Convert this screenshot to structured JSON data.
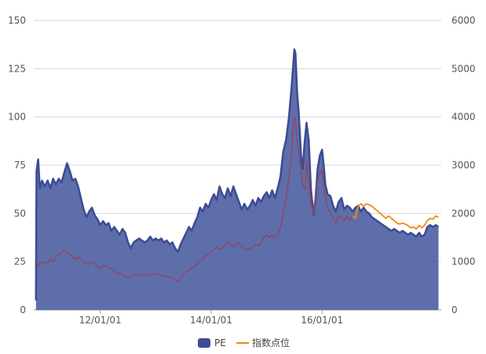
{
  "chart_data": {
    "type": "area",
    "x_ticks": [
      {
        "label": "12/01/01",
        "year": 2012.0
      },
      {
        "label": "14/01/01",
        "year": 2014.0
      },
      {
        "label": "16/01/01",
        "year": 2016.0
      }
    ],
    "x_range": [
      2010.8,
      2018.15
    ],
    "y_left": {
      "min": 0,
      "max": 150,
      "ticks": [
        0,
        25,
        50,
        75,
        100,
        125,
        150
      ]
    },
    "y_right": {
      "min": 0,
      "max": 6000,
      "ticks": [
        0,
        1000,
        2000,
        3000,
        4000,
        5000,
        6000
      ]
    },
    "grid": true,
    "legend": {
      "placement": "bottom-center"
    },
    "series": [
      {
        "name": "PE",
        "axis": "left",
        "style": "area",
        "color": "#3c4b93",
        "fill": "#5566a6",
        "points": [
          [
            2010.84,
            5
          ],
          [
            2010.85,
            72
          ],
          [
            2010.88,
            78
          ],
          [
            2010.91,
            63
          ],
          [
            2010.95,
            67
          ],
          [
            2011.0,
            64
          ],
          [
            2011.05,
            67
          ],
          [
            2011.1,
            63
          ],
          [
            2011.15,
            68
          ],
          [
            2011.2,
            65
          ],
          [
            2011.25,
            68
          ],
          [
            2011.3,
            66
          ],
          [
            2011.35,
            71
          ],
          [
            2011.4,
            76
          ],
          [
            2011.45,
            72
          ],
          [
            2011.5,
            67
          ],
          [
            2011.55,
            68
          ],
          [
            2011.6,
            64
          ],
          [
            2011.65,
            58
          ],
          [
            2011.7,
            52
          ],
          [
            2011.75,
            48
          ],
          [
            2011.8,
            51
          ],
          [
            2011.85,
            53
          ],
          [
            2011.9,
            49
          ],
          [
            2011.95,
            47
          ],
          [
            2012.0,
            44
          ],
          [
            2012.05,
            46
          ],
          [
            2012.1,
            44
          ],
          [
            2012.15,
            45
          ],
          [
            2012.2,
            41
          ],
          [
            2012.25,
            43
          ],
          [
            2012.3,
            41
          ],
          [
            2012.35,
            39
          ],
          [
            2012.4,
            42
          ],
          [
            2012.45,
            40
          ],
          [
            2012.5,
            35
          ],
          [
            2012.55,
            32
          ],
          [
            2012.6,
            35
          ],
          [
            2012.65,
            36
          ],
          [
            2012.7,
            37
          ],
          [
            2012.75,
            36
          ],
          [
            2012.8,
            35
          ],
          [
            2012.85,
            36
          ],
          [
            2012.9,
            38
          ],
          [
            2012.95,
            36
          ],
          [
            2013.0,
            37
          ],
          [
            2013.05,
            36
          ],
          [
            2013.1,
            37
          ],
          [
            2013.15,
            35
          ],
          [
            2013.2,
            36
          ],
          [
            2013.25,
            34
          ],
          [
            2013.3,
            35
          ],
          [
            2013.35,
            32
          ],
          [
            2013.4,
            30
          ],
          [
            2013.45,
            34
          ],
          [
            2013.5,
            37
          ],
          [
            2013.55,
            40
          ],
          [
            2013.6,
            43
          ],
          [
            2013.65,
            41
          ],
          [
            2013.7,
            45
          ],
          [
            2013.75,
            48
          ],
          [
            2013.8,
            53
          ],
          [
            2013.85,
            51
          ],
          [
            2013.9,
            55
          ],
          [
            2013.95,
            53
          ],
          [
            2014.0,
            57
          ],
          [
            2014.05,
            60
          ],
          [
            2014.1,
            57
          ],
          [
            2014.15,
            64
          ],
          [
            2014.2,
            60
          ],
          [
            2014.25,
            58
          ],
          [
            2014.3,
            63
          ],
          [
            2014.35,
            59
          ],
          [
            2014.4,
            64
          ],
          [
            2014.45,
            60
          ],
          [
            2014.5,
            56
          ],
          [
            2014.55,
            52
          ],
          [
            2014.6,
            55
          ],
          [
            2014.65,
            52
          ],
          [
            2014.7,
            54
          ],
          [
            2014.75,
            57
          ],
          [
            2014.8,
            54
          ],
          [
            2014.85,
            58
          ],
          [
            2014.9,
            56
          ],
          [
            2014.95,
            59
          ],
          [
            2015.0,
            61
          ],
          [
            2015.05,
            58
          ],
          [
            2015.1,
            62
          ],
          [
            2015.15,
            58
          ],
          [
            2015.2,
            63
          ],
          [
            2015.25,
            69
          ],
          [
            2015.3,
            82
          ],
          [
            2015.35,
            88
          ],
          [
            2015.4,
            99
          ],
          [
            2015.45,
            115
          ],
          [
            2015.48,
            127
          ],
          [
            2015.5,
            135
          ],
          [
            2015.52,
            133
          ],
          [
            2015.55,
            113
          ],
          [
            2015.58,
            102
          ],
          [
            2015.6,
            92
          ],
          [
            2015.62,
            80
          ],
          [
            2015.65,
            73
          ],
          [
            2015.68,
            85
          ],
          [
            2015.72,
            97
          ],
          [
            2015.76,
            88
          ],
          [
            2015.8,
            62
          ],
          [
            2015.85,
            49
          ],
          [
            2015.88,
            57
          ],
          [
            2015.92,
            73
          ],
          [
            2015.96,
            80
          ],
          [
            2016.0,
            83
          ],
          [
            2016.03,
            75
          ],
          [
            2016.06,
            65
          ],
          [
            2016.1,
            60
          ],
          [
            2016.15,
            59
          ],
          [
            2016.2,
            54
          ],
          [
            2016.25,
            51
          ],
          [
            2016.3,
            56
          ],
          [
            2016.35,
            58
          ],
          [
            2016.4,
            52
          ],
          [
            2016.45,
            54
          ],
          [
            2016.5,
            53
          ],
          [
            2016.55,
            51
          ],
          [
            2016.6,
            53
          ],
          [
            2016.65,
            54
          ],
          [
            2016.7,
            51
          ],
          [
            2016.75,
            53
          ],
          [
            2016.8,
            51
          ],
          [
            2016.85,
            50
          ],
          [
            2016.9,
            48
          ],
          [
            2016.95,
            47
          ],
          [
            2017.0,
            46
          ],
          [
            2017.05,
            45
          ],
          [
            2017.1,
            44
          ],
          [
            2017.15,
            43
          ],
          [
            2017.2,
            42
          ],
          [
            2017.25,
            41
          ],
          [
            2017.3,
            42
          ],
          [
            2017.35,
            41
          ],
          [
            2017.4,
            40
          ],
          [
            2017.45,
            41
          ],
          [
            2017.5,
            40
          ],
          [
            2017.55,
            39
          ],
          [
            2017.6,
            40
          ],
          [
            2017.65,
            39
          ],
          [
            2017.7,
            38
          ],
          [
            2017.75,
            40
          ],
          [
            2017.8,
            38
          ],
          [
            2017.85,
            39
          ],
          [
            2017.9,
            43
          ],
          [
            2017.95,
            44
          ],
          [
            2018.0,
            43
          ],
          [
            2018.05,
            44
          ],
          [
            2018.1,
            43
          ]
        ]
      },
      {
        "name": "指数点位",
        "axis": "right",
        "style": "line",
        "color": "#f28a16",
        "muted_color": "#8a4a6a",
        "highlight_from": 2016.55,
        "points": [
          [
            2010.85,
            1050
          ],
          [
            2010.88,
            900
          ],
          [
            2010.92,
            1000
          ],
          [
            2010.96,
            960
          ],
          [
            2011.0,
            1000
          ],
          [
            2011.05,
            980
          ],
          [
            2011.1,
            1050
          ],
          [
            2011.15,
            1000
          ],
          [
            2011.2,
            1100
          ],
          [
            2011.25,
            1150
          ],
          [
            2011.3,
            1200
          ],
          [
            2011.35,
            1250
          ],
          [
            2011.4,
            1200
          ],
          [
            2011.45,
            1150
          ],
          [
            2011.5,
            1100
          ],
          [
            2011.55,
            1050
          ],
          [
            2011.6,
            1100
          ],
          [
            2011.65,
            1050
          ],
          [
            2011.7,
            980
          ],
          [
            2011.75,
            960
          ],
          [
            2011.8,
            950
          ],
          [
            2011.85,
            1000
          ],
          [
            2011.9,
            960
          ],
          [
            2011.95,
            900
          ],
          [
            2012.0,
            850
          ],
          [
            2012.05,
            900
          ],
          [
            2012.1,
            920
          ],
          [
            2012.15,
            880
          ],
          [
            2012.2,
            850
          ],
          [
            2012.25,
            800
          ],
          [
            2012.3,
            750
          ],
          [
            2012.35,
            780
          ],
          [
            2012.4,
            720
          ],
          [
            2012.45,
            700
          ],
          [
            2012.5,
            680
          ],
          [
            2012.55,
            700
          ],
          [
            2012.6,
            720
          ],
          [
            2012.65,
            740
          ],
          [
            2012.7,
            700
          ],
          [
            2012.75,
            720
          ],
          [
            2012.8,
            740
          ],
          [
            2012.85,
            700
          ],
          [
            2012.9,
            720
          ],
          [
            2012.95,
            740
          ],
          [
            2013.0,
            760
          ],
          [
            2013.05,
            730
          ],
          [
            2013.1,
            720
          ],
          [
            2013.15,
            700
          ],
          [
            2013.2,
            690
          ],
          [
            2013.25,
            680
          ],
          [
            2013.3,
            660
          ],
          [
            2013.35,
            620
          ],
          [
            2013.4,
            600
          ],
          [
            2013.45,
            650
          ],
          [
            2013.5,
            750
          ],
          [
            2013.55,
            800
          ],
          [
            2013.6,
            820
          ],
          [
            2013.65,
            880
          ],
          [
            2013.7,
            900
          ],
          [
            2013.75,
            950
          ],
          [
            2013.8,
            1000
          ],
          [
            2013.85,
            1050
          ],
          [
            2013.9,
            1120
          ],
          [
            2013.95,
            1150
          ],
          [
            2014.0,
            1200
          ],
          [
            2014.05,
            1250
          ],
          [
            2014.1,
            1300
          ],
          [
            2014.15,
            1250
          ],
          [
            2014.2,
            1280
          ],
          [
            2014.25,
            1350
          ],
          [
            2014.3,
            1400
          ],
          [
            2014.35,
            1380
          ],
          [
            2014.4,
            1300
          ],
          [
            2014.45,
            1350
          ],
          [
            2014.5,
            1400
          ],
          [
            2014.55,
            1300
          ],
          [
            2014.6,
            1280
          ],
          [
            2014.65,
            1250
          ],
          [
            2014.7,
            1280
          ],
          [
            2014.75,
            1300
          ],
          [
            2014.8,
            1350
          ],
          [
            2014.85,
            1320
          ],
          [
            2014.9,
            1400
          ],
          [
            2014.95,
            1500
          ],
          [
            2015.0,
            1550
          ],
          [
            2015.05,
            1500
          ],
          [
            2015.1,
            1550
          ],
          [
            2015.15,
            1500
          ],
          [
            2015.2,
            1550
          ],
          [
            2015.25,
            1700
          ],
          [
            2015.3,
            2000
          ],
          [
            2015.35,
            2300
          ],
          [
            2015.4,
            2700
          ],
          [
            2015.45,
            3200
          ],
          [
            2015.48,
            3800
          ],
          [
            2015.5,
            4000
          ],
          [
            2015.52,
            3900
          ],
          [
            2015.55,
            3500
          ],
          [
            2015.6,
            3100
          ],
          [
            2015.65,
            2600
          ],
          [
            2015.7,
            2500
          ],
          [
            2015.72,
            3100
          ],
          [
            2015.76,
            2600
          ],
          [
            2015.8,
            2200
          ],
          [
            2015.85,
            2000
          ],
          [
            2015.9,
            2600
          ],
          [
            2015.95,
            2800
          ],
          [
            2016.0,
            2900
          ],
          [
            2016.05,
            2400
          ],
          [
            2016.1,
            2100
          ],
          [
            2016.15,
            2000
          ],
          [
            2016.2,
            1900
          ],
          [
            2016.25,
            1800
          ],
          [
            2016.3,
            1950
          ],
          [
            2016.35,
            1900
          ],
          [
            2016.4,
            1850
          ],
          [
            2016.45,
            1950
          ],
          [
            2016.5,
            1850
          ],
          [
            2016.55,
            1950
          ],
          [
            2016.6,
            1900
          ],
          [
            2016.65,
            2150
          ],
          [
            2016.7,
            2200
          ],
          [
            2016.75,
            2150
          ],
          [
            2016.8,
            2200
          ],
          [
            2016.85,
            2180
          ],
          [
            2016.9,
            2150
          ],
          [
            2016.95,
            2100
          ],
          [
            2017.0,
            2050
          ],
          [
            2017.05,
            2000
          ],
          [
            2017.1,
            1950
          ],
          [
            2017.15,
            1900
          ],
          [
            2017.2,
            1950
          ],
          [
            2017.25,
            1900
          ],
          [
            2017.3,
            1850
          ],
          [
            2017.35,
            1800
          ],
          [
            2017.4,
            1780
          ],
          [
            2017.45,
            1800
          ],
          [
            2017.5,
            1780
          ],
          [
            2017.55,
            1750
          ],
          [
            2017.6,
            1700
          ],
          [
            2017.65,
            1720
          ],
          [
            2017.7,
            1680
          ],
          [
            2017.75,
            1750
          ],
          [
            2017.8,
            1700
          ],
          [
            2017.85,
            1760
          ],
          [
            2017.9,
            1850
          ],
          [
            2017.95,
            1900
          ],
          [
            2018.0,
            1880
          ],
          [
            2018.05,
            1950
          ],
          [
            2018.1,
            1920
          ]
        ]
      }
    ]
  }
}
